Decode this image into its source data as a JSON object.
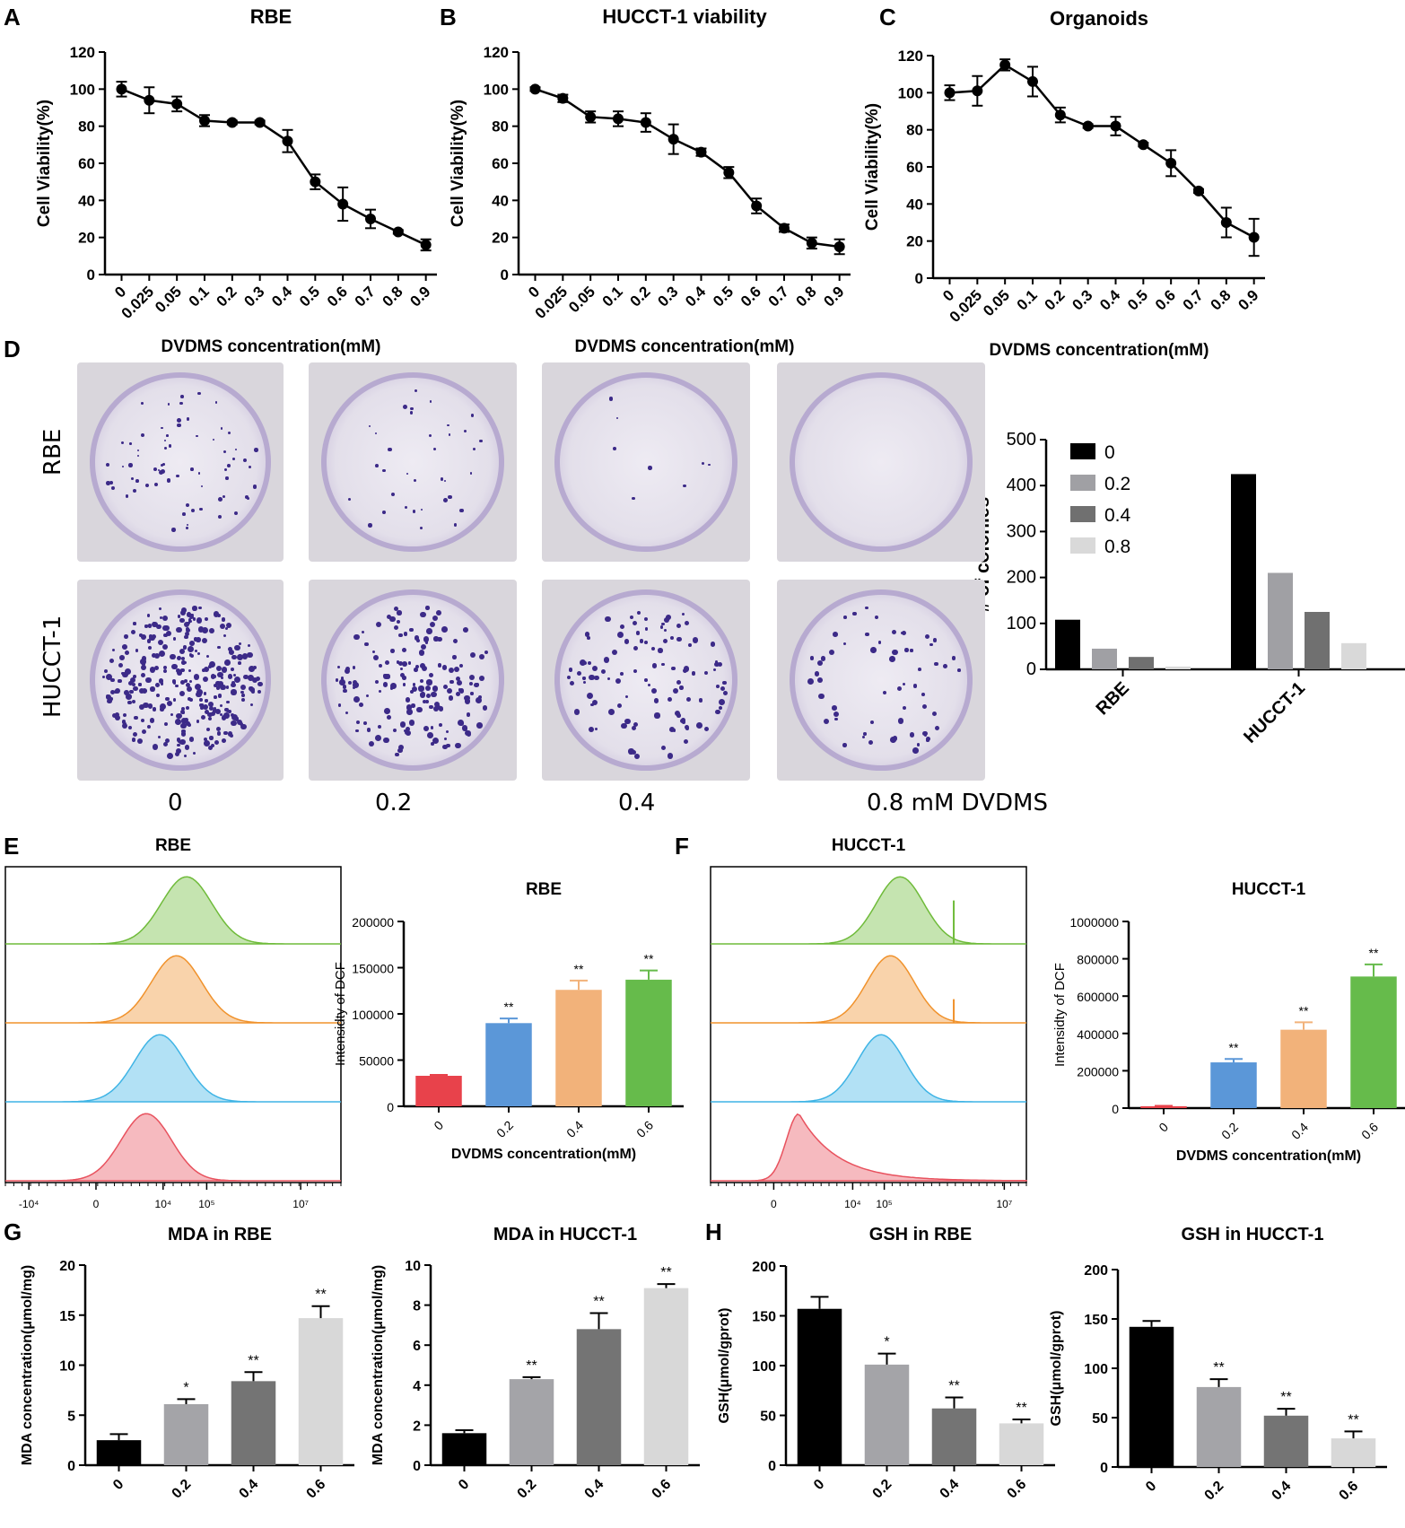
{
  "panels": {
    "A": "A",
    "B": "B",
    "C": "C",
    "D": "D",
    "E": "E",
    "F": "F",
    "G": "G",
    "H": "H"
  },
  "colonies": {
    "row_labels": [
      "RBE",
      "HUCCT-1"
    ],
    "col_labels": [
      "0",
      "0.2",
      "0.4",
      "0.8 mM DVDMS"
    ],
    "colors": {
      "stain": "#3c2a88",
      "dish": "#e3dfea"
    }
  },
  "chart_data": [
    {
      "id": "A",
      "type": "line",
      "title": "RBE",
      "categories": [
        "0",
        "0.025",
        "0.05",
        "0.1",
        "0.2",
        "0.3",
        "0.4",
        "0.5",
        "0.6",
        "0.7",
        "0.8",
        "0.9"
      ],
      "values": [
        100,
        94,
        92,
        83,
        82,
        82,
        72,
        50,
        38,
        30,
        23,
        16
      ],
      "errors": [
        4,
        7,
        4,
        3,
        1,
        1,
        6,
        4,
        9,
        5,
        1,
        3
      ],
      "xlabel": "DVDMS concentration(mM)",
      "ylabel": "Cell Viability(%)",
      "ylim": [
        0,
        120
      ],
      "yticks": [
        0,
        20,
        40,
        60,
        80,
        100,
        120
      ]
    },
    {
      "id": "B",
      "type": "line",
      "title": "HUCCT-1 viability",
      "categories": [
        "0",
        "0.025",
        "0.05",
        "0.1",
        "0.2",
        "0.3",
        "0.4",
        "0.5",
        "0.6",
        "0.7",
        "0.8",
        "0.9"
      ],
      "values": [
        100,
        95,
        85,
        84,
        82,
        73,
        66,
        55,
        37,
        25,
        17,
        15
      ],
      "errors": [
        1,
        2,
        3,
        4,
        5,
        8,
        2,
        3,
        4,
        2,
        3,
        4
      ],
      "xlabel": "DVDMS concentration(mM)",
      "ylabel": "Cell Viability(%)",
      "ylim": [
        0,
        120
      ],
      "yticks": [
        0,
        20,
        40,
        60,
        80,
        100,
        120
      ]
    },
    {
      "id": "C",
      "type": "line",
      "title": "Organoids",
      "categories": [
        "0",
        "0.025",
        "0.05",
        "0.1",
        "0.2",
        "0.3",
        "0.4",
        "0.5",
        "0.6",
        "0.7",
        "0.8",
        "0.9"
      ],
      "values": [
        100,
        101,
        115,
        106,
        88,
        82,
        82,
        72,
        62,
        47,
        30,
        22
      ],
      "errors": [
        4,
        8,
        3,
        8,
        4,
        1,
        5,
        1,
        7,
        1,
        8,
        10
      ],
      "xlabel": "DVDMS concentration(mM)",
      "ylabel": "Cell Viability(%)",
      "ylim": [
        0,
        120
      ],
      "yticks": [
        0,
        20,
        40,
        60,
        80,
        100,
        120
      ]
    },
    {
      "id": "D",
      "type": "bar",
      "title": "",
      "categories": [
        "RBE",
        "HUCCT-1"
      ],
      "series": [
        {
          "name": "0",
          "values": [
            108,
            425
          ],
          "color": "#000000"
        },
        {
          "name": "0.2",
          "values": [
            45,
            210
          ],
          "color": "#a0a0a4"
        },
        {
          "name": "0.4",
          "values": [
            27,
            125
          ],
          "color": "#707070"
        },
        {
          "name": "0.8",
          "values": [
            6,
            57
          ],
          "color": "#d9d9d9"
        }
      ],
      "xlabel": "",
      "ylabel": "# of colonies",
      "ylim": [
        0,
        500
      ],
      "yticks": [
        0,
        100,
        200,
        300,
        400,
        500
      ],
      "legend": "top-left"
    },
    {
      "id": "E-hist",
      "type": "area",
      "title": "RBE",
      "xticks": [
        "-10⁴",
        "0",
        "10⁴",
        "10⁵",
        "10⁷"
      ],
      "series": [
        {
          "name": "0.6",
          "peak": 0.54,
          "color": "#6fbb3a"
        },
        {
          "name": "0.4",
          "peak": 0.51,
          "color": "#f0922c"
        },
        {
          "name": "0.2",
          "peak": 0.46,
          "color": "#3fb4e5"
        },
        {
          "name": "0",
          "peak": 0.42,
          "color": "#e8525e"
        }
      ]
    },
    {
      "id": "E-bar",
      "type": "bar",
      "title": "RBE",
      "categories": [
        "0",
        "0.2",
        "0.4",
        "0.6"
      ],
      "values": [
        33000,
        90000,
        126000,
        137000
      ],
      "errors": [
        1000,
        5000,
        10000,
        10000
      ],
      "colors": [
        "#e8424b",
        "#5b97d8",
        "#f2b27a",
        "#66bb4b"
      ],
      "annotations": [
        "",
        "**",
        "**",
        "**"
      ],
      "xlabel": "DVDMS concentration(mM)",
      "ylabel": "Intensidty of DCF",
      "ylim": [
        0,
        200000
      ],
      "yticks": [
        0,
        50000,
        100000,
        150000,
        200000
      ]
    },
    {
      "id": "F-hist",
      "type": "area",
      "title": "HUCCT-1",
      "xticks": [
        "0",
        "10⁴",
        "10⁵",
        "10⁷"
      ],
      "series": [
        {
          "name": "0.6",
          "peak": 0.6,
          "color": "#6fbb3a"
        },
        {
          "name": "0.4",
          "peak": 0.57,
          "color": "#f0922c"
        },
        {
          "name": "0.2",
          "peak": 0.54,
          "color": "#3fb4e5"
        },
        {
          "name": "0",
          "peak": 0.28,
          "color": "#e8525e"
        }
      ]
    },
    {
      "id": "F-bar",
      "type": "bar",
      "title": "HUCCT-1",
      "categories": [
        "0",
        "0.2",
        "0.4",
        "0.6"
      ],
      "values": [
        10000,
        245000,
        420000,
        705000
      ],
      "errors": [
        2000,
        18000,
        40000,
        65000
      ],
      "colors": [
        "#e8424b",
        "#5b97d8",
        "#f2b27a",
        "#66bb4b"
      ],
      "annotations": [
        "",
        "**",
        "**",
        "**"
      ],
      "xlabel": "DVDMS concentration(mM)",
      "ylabel": "Intensidty of DCF",
      "ylim": [
        0,
        1000000
      ],
      "yticks": [
        0,
        200000,
        400000,
        600000,
        800000,
        1000000
      ]
    },
    {
      "id": "G1",
      "type": "bar",
      "title": "MDA in RBE",
      "categories": [
        "0",
        "0.2",
        "0.4",
        "0.6"
      ],
      "values": [
        2.5,
        6.1,
        8.4,
        14.7
      ],
      "errors": [
        0.6,
        0.5,
        0.9,
        1.2
      ],
      "colors": [
        "#000000",
        "#a4a4a8",
        "#747474",
        "#d8d8d8"
      ],
      "annotations": [
        "",
        "*",
        "**",
        "**"
      ],
      "xlabel": "DVDMS concentration(mM)",
      "ylabel": "MDA concentration(μmol/mg)",
      "ylim": [
        0,
        20
      ],
      "yticks": [
        0,
        5,
        10,
        15,
        20
      ]
    },
    {
      "id": "G2",
      "type": "bar",
      "title": "MDA in HUCCT-1",
      "categories": [
        "0",
        "0.2",
        "0.4",
        "0.6"
      ],
      "values": [
        1.6,
        4.3,
        6.8,
        8.85
      ],
      "errors": [
        0.15,
        0.1,
        0.8,
        0.2
      ],
      "colors": [
        "#000000",
        "#a4a4a8",
        "#747474",
        "#d8d8d8"
      ],
      "annotations": [
        "",
        "**",
        "**",
        "**"
      ],
      "xlabel": "DVDMS concentration(mM)",
      "ylabel": "MDA concentration(μmol/mg)",
      "ylim": [
        0,
        10
      ],
      "yticks": [
        0,
        2,
        4,
        6,
        8,
        10
      ]
    },
    {
      "id": "H1",
      "type": "bar",
      "title": "GSH in RBE",
      "categories": [
        "0",
        "0.2",
        "0.4",
        "0.6"
      ],
      "values": [
        157,
        101,
        57,
        42
      ],
      "errors": [
        12,
        11,
        11,
        4
      ],
      "colors": [
        "#000000",
        "#a4a4a8",
        "#747474",
        "#d8d8d8"
      ],
      "annotations": [
        "",
        "*",
        "**",
        "**"
      ],
      "xlabel": "DVDMS concentration(mM)",
      "ylabel": "GSH(μmol/gprot)",
      "ylim": [
        0,
        200
      ],
      "yticks": [
        0,
        50,
        100,
        150,
        200
      ]
    },
    {
      "id": "H2",
      "type": "bar",
      "title": "GSH in HUCCT-1",
      "categories": [
        "0",
        "0.2",
        "0.4",
        "0.6"
      ],
      "values": [
        142,
        81,
        52,
        29
      ],
      "errors": [
        6,
        8,
        7,
        7
      ],
      "colors": [
        "#000000",
        "#a4a4a8",
        "#747474",
        "#d8d8d8"
      ],
      "annotations": [
        "",
        "**",
        "**",
        "**"
      ],
      "xlabel": "DVDMS concentration(mM)",
      "ylabel": "GSH(μmol/gprot)",
      "ylim": [
        0,
        200
      ],
      "yticks": [
        0,
        50,
        100,
        150,
        200
      ]
    }
  ]
}
